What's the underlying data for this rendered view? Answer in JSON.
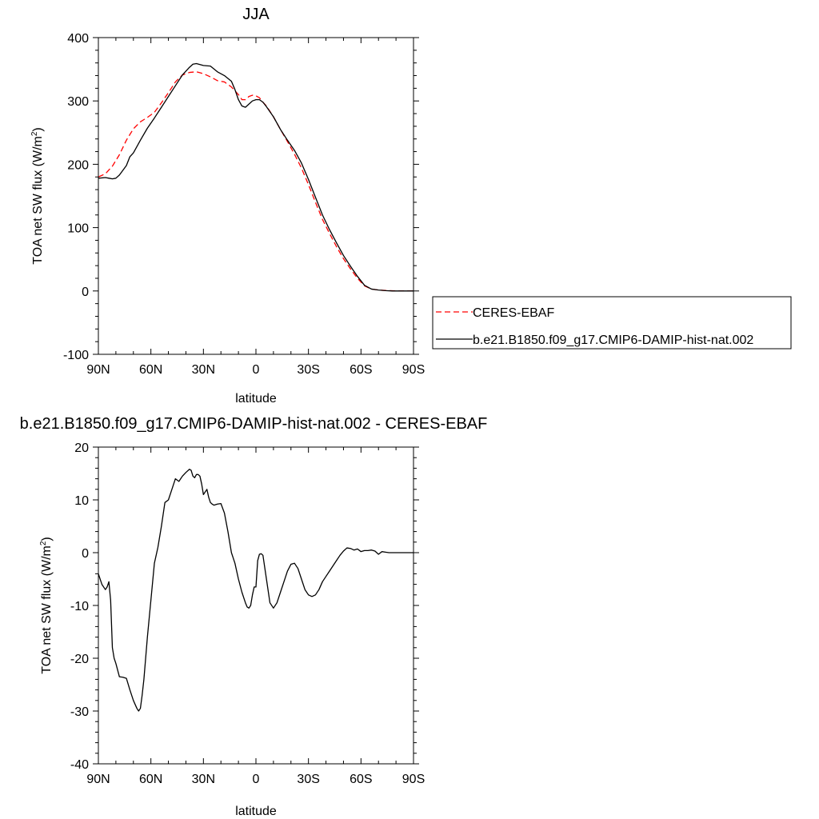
{
  "chart_data": [
    {
      "type": "line",
      "title": "JJA",
      "xlabel": "latitude",
      "ylabel_main": "TOA net SW flux (W/m",
      "ylabel_sup": "2",
      "ylabel_tail": ")",
      "xlim": [
        90,
        -90
      ],
      "ylim": [
        -100,
        400
      ],
      "xticks": [
        90,
        60,
        30,
        0,
        -30,
        -60,
        -90
      ],
      "xtick_labels": [
        "90N",
        "60N",
        "30N",
        "0",
        "30S",
        "60S",
        "90S"
      ],
      "yticks": [
        -100,
        0,
        100,
        200,
        300,
        400
      ],
      "ytick_labels": [
        "-100",
        "0",
        "100",
        "200",
        "300",
        "400"
      ],
      "grid": false,
      "legend_position": "right",
      "series": [
        {
          "name": "CERES-EBAF",
          "color": "#ff0000",
          "dash": "dashed",
          "x": [
            90,
            86,
            82,
            78,
            74,
            70,
            66,
            62,
            58,
            54,
            50,
            46,
            42,
            38,
            34,
            30,
            26,
            22,
            18,
            14,
            10,
            8,
            6,
            4,
            2,
            0,
            -2,
            -4,
            -6,
            -10,
            -14,
            -18,
            -22,
            -26,
            -30,
            -34,
            -38,
            -42,
            -46,
            -50,
            -54,
            -58,
            -62,
            -66,
            -70,
            -74,
            -78,
            -82,
            -86,
            -90
          ],
          "y": [
            180,
            185,
            197,
            215,
            238,
            256,
            267,
            274,
            282,
            297,
            313,
            330,
            341,
            345,
            346,
            343,
            338,
            332,
            330,
            322,
            310,
            302,
            302,
            307,
            309,
            308,
            305,
            298,
            292,
            275,
            255,
            236,
            216,
            194,
            168,
            140,
            113,
            91,
            70,
            51,
            35,
            20,
            8,
            3,
            1.5,
            0.8,
            0.3,
            0,
            0,
            0
          ]
        },
        {
          "name": "b.e21.B1850.f09_g17.CMIP6-DAMIP-hist-nat.002",
          "color": "#000000",
          "dash": "solid",
          "x": [
            90,
            86,
            84,
            82,
            80,
            78,
            74,
            72,
            70,
            66,
            62,
            58,
            54,
            50,
            46,
            42,
            38,
            36,
            34,
            30,
            26,
            22,
            18,
            14,
            12,
            10,
            8,
            6,
            4,
            2,
            0,
            -2,
            -4,
            -6,
            -10,
            -14,
            -18,
            -22,
            -26,
            -30,
            -34,
            -38,
            -42,
            -46,
            -50,
            -54,
            -58,
            -62,
            -66,
            -70,
            -74,
            -78,
            -82,
            -86,
            -90
          ],
          "y": [
            178,
            179,
            178,
            177,
            178,
            183,
            198,
            212,
            218,
            238,
            257,
            273,
            290,
            307,
            324,
            341,
            353,
            358,
            359,
            356,
            355,
            346,
            340,
            331,
            318,
            302,
            292,
            290,
            295,
            300,
            302,
            302,
            298,
            291,
            275,
            255,
            238,
            222,
            202,
            176,
            148,
            120,
            97,
            76,
            56,
            39,
            23,
            9,
            3,
            1.5,
            0.5,
            0,
            0,
            0,
            0
          ]
        }
      ]
    },
    {
      "type": "line",
      "title": "b.e21.B1850.f09_g17.CMIP6-DAMIP-hist-nat.002 - CERES-EBAF",
      "xlabel": "latitude",
      "ylabel_main": "TOA net SW flux (W/m",
      "ylabel_sup": "2",
      "ylabel_tail": ")",
      "xlim": [
        90,
        -90
      ],
      "ylim": [
        -40,
        20
      ],
      "xticks": [
        90,
        60,
        30,
        0,
        -30,
        -60,
        -90
      ],
      "xtick_labels": [
        "90N",
        "60N",
        "30N",
        "0",
        "30S",
        "60S",
        "90S"
      ],
      "yticks": [
        -40,
        -30,
        -20,
        -10,
        0,
        10,
        20
      ],
      "ytick_labels": [
        "-40",
        "-30",
        "-20",
        "-10",
        "0",
        "10",
        "20"
      ],
      "grid": false,
      "series": [
        {
          "name": "",
          "color": "#000000",
          "dash": "solid",
          "x": [
            90,
            88,
            86,
            85,
            84,
            83,
            82,
            81,
            80,
            78,
            76,
            74,
            72,
            70,
            68,
            67,
            66,
            65,
            64,
            62,
            60,
            58,
            56,
            54,
            52,
            50,
            48,
            46,
            44,
            42,
            40,
            38,
            37,
            36,
            35,
            34,
            33,
            32,
            31,
            30,
            28,
            27,
            26,
            25,
            24,
            22,
            20,
            18,
            16,
            14,
            13,
            12,
            10,
            8,
            6,
            5,
            4,
            3,
            2,
            1,
            0,
            -1,
            -2,
            -3,
            -4,
            -6,
            -8,
            -10,
            -12,
            -14,
            -16,
            -18,
            -20,
            -22,
            -24,
            -26,
            -28,
            -30,
            -32,
            -34,
            -36,
            -38,
            -40,
            -42,
            -44,
            -46,
            -48,
            -50,
            -52,
            -54,
            -56,
            -58,
            -60,
            -62,
            -64,
            -66,
            -68,
            -70,
            -72,
            -74,
            -76,
            -78,
            -80,
            -82,
            -84,
            -86,
            -88,
            -90
          ],
          "y": [
            -4,
            -6,
            -7,
            -6.5,
            -5.5,
            -9,
            -18,
            -20,
            -21,
            -23.5,
            -23.6,
            -23.8,
            -26,
            -28,
            -29.5,
            -30,
            -29.5,
            -27,
            -24,
            -16,
            -9,
            -2,
            1,
            5,
            9.5,
            10,
            12,
            14,
            13.5,
            14.5,
            15.2,
            15.8,
            15.6,
            14.5,
            14.2,
            14.8,
            14.8,
            14.5,
            13,
            11,
            12,
            10.5,
            9.5,
            9.2,
            9,
            9.2,
            9.3,
            7.5,
            4,
            0,
            -1,
            -2,
            -5,
            -7.5,
            -9.5,
            -10.3,
            -10.5,
            -10,
            -8,
            -6.5,
            -6.5,
            -1.5,
            -0.3,
            -0.2,
            -0.5,
            -5,
            -9.5,
            -10.5,
            -9.5,
            -7.5,
            -5.5,
            -3.5,
            -2.2,
            -2,
            -3,
            -5,
            -7,
            -8,
            -8.3,
            -8,
            -7,
            -5.5,
            -4.5,
            -3.5,
            -2.5,
            -1.5,
            -0.5,
            0.3,
            0.9,
            0.8,
            0.5,
            0.7,
            0.2,
            0.4,
            0.4,
            0.5,
            0.3,
            -0.3,
            0.2,
            0.1,
            0,
            0,
            0,
            0,
            0,
            0,
            0,
            0
          ]
        }
      ]
    }
  ]
}
